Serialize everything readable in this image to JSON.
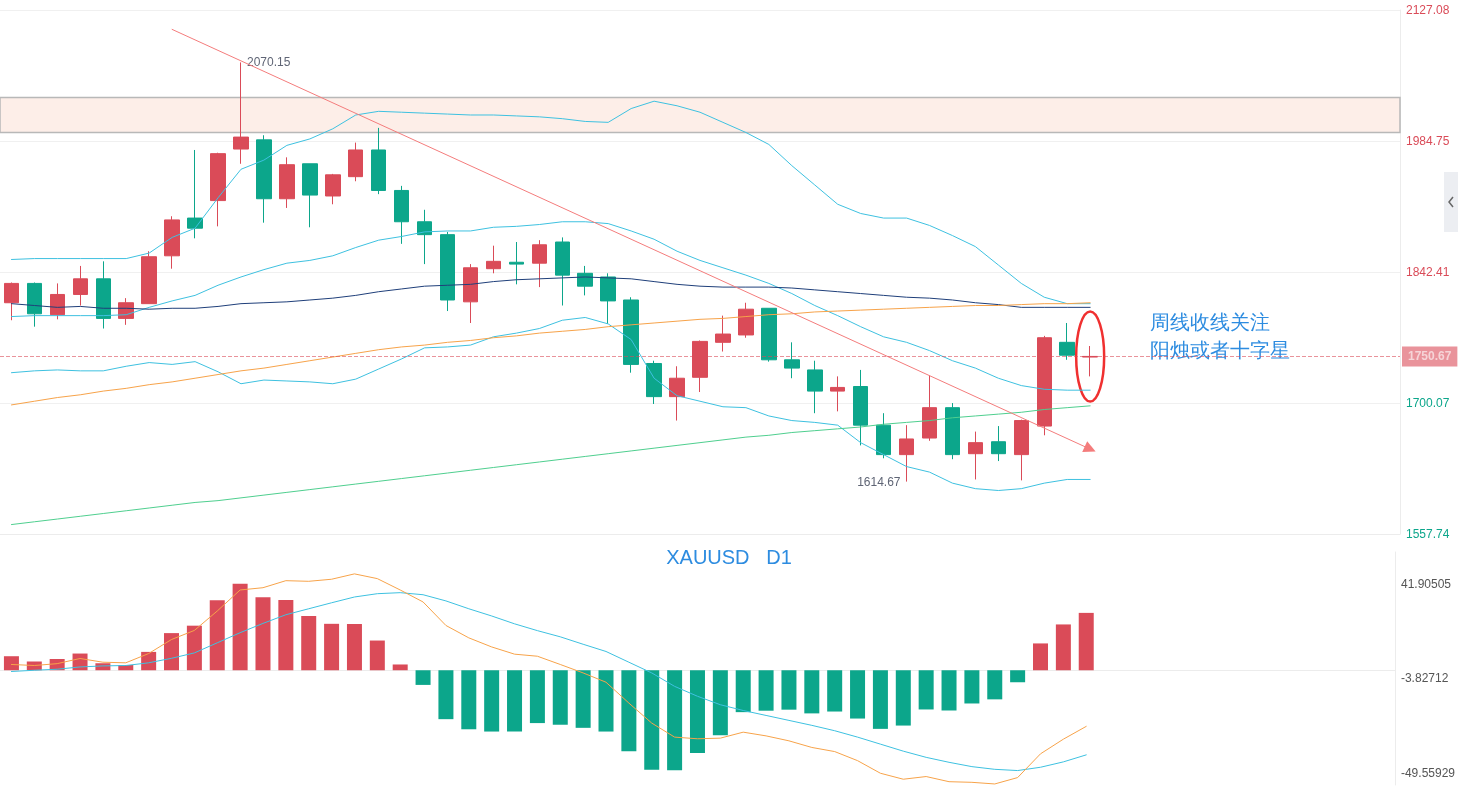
{
  "chart_data": [
    {
      "type": "candlestick",
      "categories": [
        null,
        null,
        null,
        null,
        null,
        null,
        null,
        null,
        null,
        null,
        null,
        null,
        null,
        null,
        null,
        null,
        null,
        null,
        null,
        null,
        null,
        null,
        null,
        null,
        null,
        null,
        null,
        null,
        null,
        null,
        null,
        null,
        null,
        null,
        null,
        null,
        null,
        null,
        null,
        null,
        null,
        null,
        null,
        null,
        null,
        null,
        null,
        null
      ],
      "ohlc": [
        [
          1809,
          1831,
          1790,
          1830
        ],
        [
          1830,
          1831,
          1783,
          1797
        ],
        [
          1796,
          1830,
          1791,
          1818
        ],
        [
          1818,
          1849,
          1806,
          1835
        ],
        [
          1835,
          1854,
          1781,
          1792
        ],
        [
          1792,
          1814,
          1785,
          1809
        ],
        [
          1808,
          1865,
          1808,
          1859
        ],
        [
          1860,
          1903,
          1846,
          1899
        ],
        [
          1901,
          1975,
          1879,
          1890
        ],
        [
          1920,
          1972,
          1892,
          1971
        ],
        [
          1976,
          2070.15,
          1960,
          1989
        ],
        [
          1986,
          1991,
          1896,
          1922
        ],
        [
          1922,
          1967,
          1912,
          1959
        ],
        [
          1960,
          1960,
          1891,
          1926
        ],
        [
          1925,
          1949,
          1916,
          1948
        ],
        [
          1946,
          1983,
          1941,
          1975
        ],
        [
          1975,
          1999,
          1927,
          1931
        ],
        [
          1931,
          1936,
          1873,
          1897
        ],
        [
          1897,
          1910,
          1851,
          1883
        ],
        [
          1883,
          1886,
          1800,
          1812
        ],
        [
          1810,
          1851,
          1787,
          1847
        ],
        [
          1846,
          1871,
          1841,
          1854
        ],
        [
          1853,
          1875,
          1829,
          1851
        ],
        [
          1852,
          1877,
          1826,
          1872
        ],
        [
          1875,
          1880,
          1806,
          1839
        ],
        [
          1841,
          1849,
          1817,
          1827
        ],
        [
          1837,
          1841,
          1786,
          1811
        ],
        [
          1812,
          1815,
          1733,
          1742
        ],
        [
          1743,
          1746,
          1699,
          1707
        ],
        [
          1707,
          1740,
          1681,
          1727
        ],
        [
          1728,
          1768,
          1712,
          1767
        ],
        [
          1766,
          1795,
          1756,
          1775
        ],
        [
          1774,
          1809,
          1771,
          1802
        ],
        [
          1803,
          1803,
          1745,
          1747
        ],
        [
          1747,
          1766,
          1727,
          1738
        ],
        [
          1736,
          1746,
          1689,
          1713
        ],
        [
          1713,
          1729,
          1691,
          1717
        ],
        [
          1718,
          1736,
          1654,
          1676
        ],
        [
          1676,
          1689,
          1640,
          1644
        ],
        [
          1644,
          1676,
          1614.67,
          1661
        ],
        [
          1662,
          1730,
          1659,
          1695
        ],
        [
          1695,
          1700,
          1639,
          1644
        ],
        [
          1645,
          1669,
          1617,
          1657
        ],
        [
          1658,
          1675,
          1637,
          1645
        ],
        [
          1644,
          1682,
          1616,
          1681
        ],
        [
          1675,
          1773,
          1665,
          1771
        ],
        [
          1766,
          1787,
          1747,
          1752
        ],
        [
          1750,
          1762,
          1729,
          1750.67
        ]
      ],
      "colors": [
        "#da4b58",
        "#0ca68b",
        "#da4b58",
        "#da4b58",
        "#0ca68b",
        "#da4b58",
        "#da4b58",
        "#da4b58",
        "#0ca68b",
        "#da4b58",
        "#da4b58",
        "#0ca68b",
        "#da4b58",
        "#0ca68b",
        "#da4b58",
        "#da4b58",
        "#0ca68b",
        "#0ca68b",
        "#0ca68b",
        "#0ca68b",
        "#da4b58",
        "#da4b58",
        "#0ca68b",
        "#da4b58",
        "#0ca68b",
        "#0ca68b",
        "#0ca68b",
        "#0ca68b",
        "#0ca68b",
        "#da4b58",
        "#da4b58",
        "#da4b58",
        "#da4b58",
        "#0ca68b",
        "#0ca68b",
        "#0ca68b",
        "#da4b58",
        "#0ca68b",
        "#0ca68b",
        "#da4b58",
        "#da4b58",
        "#0ca68b",
        "#da4b58",
        "#0ca68b",
        "#da4b58",
        "#da4b58",
        "#0ca68b",
        "#da4b58"
      ],
      "series": [
        {
          "type": "line",
          "color": "#3ec1e0",
          "values": [
            1856,
            1857,
            1857,
            1857,
            1857,
            1857,
            1863,
            1880,
            1890,
            1923,
            1954,
            1964,
            1980,
            1987,
            1998,
            2013,
            2017,
            2016,
            2015,
            2014,
            2013,
            2013,
            2012,
            2011,
            2009,
            2006,
            2005,
            2020,
            2028,
            2023,
            2016,
            2005,
            1994,
            1981,
            1958,
            1937,
            1916,
            1906,
            1901,
            1901,
            1893,
            1882,
            1870,
            1850,
            1830,
            1815,
            1808,
            1808
          ]
        },
        {
          "type": "line",
          "color": "#3ec1e0",
          "values": [
            1794,
            1795,
            1795,
            1795,
            1795,
            1796,
            1804,
            1811,
            1817,
            1828,
            1837,
            1845,
            1852,
            1855,
            1860,
            1869,
            1877,
            1881,
            1886,
            1887,
            1887,
            1891,
            1892,
            1894,
            1897,
            1897,
            1895,
            1887,
            1878,
            1865,
            1855,
            1847,
            1839,
            1830,
            1819,
            1806,
            1795,
            1783,
            1772,
            1766,
            1757,
            1746,
            1738,
            1727,
            1719,
            1715,
            1714,
            1714
          ]
        },
        {
          "type": "line",
          "color": "#3ec1e0",
          "values": [
            1733,
            1735,
            1736,
            1735,
            1735,
            1740,
            1744,
            1742,
            1745,
            1734,
            1721,
            1725,
            1724,
            1723,
            1721,
            1726,
            1737,
            1748,
            1760,
            1761,
            1763,
            1772,
            1776,
            1781,
            1790,
            1793,
            1786,
            1769,
            1727,
            1708,
            1702,
            1696,
            1695,
            1686,
            1681,
            1679,
            1676,
            1657,
            1644,
            1631,
            1625,
            1613,
            1607,
            1605,
            1607,
            1613,
            1617,
            1617
          ]
        },
        {
          "type": "line",
          "color": "#1f3f7a",
          "values": [
            1808,
            1806,
            1804,
            1805,
            1803,
            1803,
            1802,
            1803,
            1803,
            1805,
            1808,
            1809,
            1810,
            1812,
            1814,
            1817,
            1821,
            1824,
            1827,
            1828,
            1829,
            1832,
            1834,
            1835,
            1836,
            1837,
            1836,
            1835,
            1832,
            1829,
            1827,
            1826,
            1826,
            1826,
            1825,
            1823,
            1821,
            1819,
            1817,
            1815,
            1814,
            1812,
            1809,
            1807,
            1804,
            1804,
            1804,
            1804
          ]
        },
        {
          "type": "line",
          "color": "#f7a34a",
          "values": [
            1698,
            1702,
            1706,
            1709,
            1713,
            1716,
            1720,
            1723,
            1727,
            1731,
            1735,
            1738,
            1742,
            1746,
            1750,
            1754,
            1758,
            1761,
            1763,
            1766,
            1768,
            1771,
            1773,
            1776,
            1778,
            1780,
            1783,
            1785,
            1787,
            1789,
            1791,
            1792,
            1794,
            1796,
            1797,
            1799,
            1800,
            1801,
            1802,
            1803,
            1804,
            1805,
            1806,
            1806,
            1807,
            1808,
            1808,
            1809
          ]
        },
        {
          "type": "line",
          "color": "#4fcf8f",
          "values": [
            1568,
            1571,
            1574,
            1577,
            1580,
            1583,
            1586,
            1589,
            1592,
            1594,
            1597,
            1600,
            1603,
            1606,
            1609,
            1612,
            1615,
            1618,
            1621,
            1624,
            1627,
            1630,
            1633,
            1636,
            1639,
            1642,
            1645,
            1648,
            1651,
            1654,
            1657,
            1660,
            1663,
            1665,
            1668,
            1670,
            1672,
            1674,
            1677,
            1679,
            1681,
            1684,
            1686,
            1688,
            1690,
            1693,
            1695,
            1697
          ]
        },
        {
          "type": "line",
          "color": "#f47c7c",
          "marker": "triangle",
          "values": [
            null,
            null,
            null,
            null,
            null,
            null,
            null,
            2106,
            null,
            null,
            null,
            null,
            null,
            null,
            null,
            null,
            null,
            null,
            null,
            null,
            null,
            null,
            null,
            null,
            null,
            null,
            null,
            null,
            null,
            null,
            null,
            null,
            null,
            null,
            null,
            null,
            null,
            null,
            null,
            null,
            null,
            null,
            null,
            null,
            null,
            null,
            null,
            1650
          ]
        }
      ],
      "ylim": [
        1557.74,
        2127.08
      ],
      "yticks": [
        1557.74,
        1700.07,
        1842.41,
        1984.75,
        2127.08
      ],
      "grid": "y",
      "ref_lines": [
        {
          "axis": "y",
          "value": 1750.67,
          "label": "1750.67",
          "color": "#da4b58",
          "line_style": "dashed"
        }
      ],
      "bands": [
        {
          "axis": "y",
          "from": 1994,
          "to": 2032,
          "color": "#fdeee8"
        }
      ],
      "annotations": [
        "2070.15",
        "1614.67",
        "周线收线关注",
        "阳烛或者十字星"
      ]
    },
    {
      "type": "bar",
      "title": "XAUUSD   D1",
      "categories": [
        null,
        null,
        null,
        null,
        null,
        null,
        null,
        null,
        null,
        null,
        null,
        null,
        null,
        null,
        null,
        null,
        null,
        null,
        null,
        null,
        null,
        null,
        null,
        null,
        null,
        null,
        null,
        null,
        null,
        null,
        null,
        null,
        null,
        null,
        null,
        null,
        null,
        null,
        null,
        null,
        null,
        null,
        null,
        null,
        null,
        null,
        null,
        null
      ],
      "series": [
        {
          "type": "bar",
          "colors": [
            "#da4b58",
            "#da4b58",
            "#da4b58",
            "#da4b58",
            "#da4b58",
            "#da4b58",
            "#da4b58",
            "#da4b58",
            "#da4b58",
            "#da4b58",
            "#da4b58",
            "#da4b58",
            "#da4b58",
            "#da4b58",
            "#da4b58",
            "#da4b58",
            "#da4b58",
            "#da4b58",
            "#0ca68b",
            "#0ca68b",
            "#0ca68b",
            "#0ca68b",
            "#0ca68b",
            "#0ca68b",
            "#0ca68b",
            "#0ca68b",
            "#0ca68b",
            "#0ca68b",
            "#0ca68b",
            "#0ca68b",
            "#0ca68b",
            "#0ca68b",
            "#0ca68b",
            "#0ca68b",
            "#0ca68b",
            "#0ca68b",
            "#0ca68b",
            "#0ca68b",
            "#0ca68b",
            "#0ca68b",
            "#0ca68b",
            "#0ca68b",
            "#0ca68b",
            "#0ca68b",
            "#0ca68b",
            "#da4b58",
            "#da4b58",
            "#da4b58"
          ],
          "values": [
            6.8,
            4.2,
            5.4,
            8.1,
            3.4,
            2.6,
            8.9,
            18.0,
            21.6,
            33.9,
            41.9,
            35.4,
            34.1,
            26.3,
            22.5,
            22.4,
            14.4,
            2.8,
            -7.1,
            -23.7,
            -28.6,
            -29.7,
            -29.7,
            -25.6,
            -26.4,
            -27.9,
            -29.7,
            -39.3,
            -48.2,
            -48.4,
            -40.1,
            -31.5,
            -20.3,
            -19.6,
            -19.1,
            -20.9,
            -20.0,
            -23.4,
            -28.4,
            -26.8,
            -19.0,
            -19.5,
            -16.1,
            -14.1,
            -5.8,
            13.0,
            22.2,
            27.8
          ]
        },
        {
          "type": "line",
          "color": "#3ec1e0",
          "values": [
            -0.6,
            0,
            0.5,
            1.6,
            2.1,
            2.3,
            3.6,
            5.8,
            8.4,
            13.3,
            18.2,
            22.7,
            26.9,
            29.8,
            32.7,
            35.5,
            37.1,
            37.6,
            36.6,
            33.6,
            29.8,
            26.3,
            22.5,
            19.2,
            16.2,
            12.6,
            9.1,
            3.9,
            -1.3,
            -7.8,
            -12.6,
            -16.7,
            -19.5,
            -21.9,
            -24.3,
            -26.7,
            -29.3,
            -32.4,
            -35.8,
            -39.2,
            -42.2,
            -44.6,
            -46.7,
            -48.0,
            -48.6,
            -47.0,
            -44.4,
            -41.0
          ]
        },
        {
          "type": "line",
          "color": "#f7a34a",
          "values": [
            2.8,
            2.3,
            3.2,
            5.7,
            3.9,
            3.6,
            8.1,
            14.9,
            19.3,
            28.7,
            38.9,
            40.0,
            43.4,
            43.1,
            44.1,
            46.7,
            44.4,
            38.9,
            33.1,
            21.7,
            15.7,
            11.3,
            7.8,
            6.8,
            2.8,
            -1.3,
            -5.8,
            -15.9,
            -25.6,
            -32.4,
            -33.2,
            -32.9,
            -30.0,
            -31.8,
            -34.2,
            -37.4,
            -39.4,
            -43.8,
            -49.9,
            -52.8,
            -51.5,
            -54.0,
            -54.3,
            -55.1,
            -52.0,
            -40.5,
            -33.4,
            -27.2
          ]
        }
      ],
      "ylim": [
        -55.6,
        57.3
      ],
      "yticks": [
        41.90505,
        -3.82712,
        -49.55929
      ],
      "grid": false,
      "marker": "none"
    }
  ]
}
